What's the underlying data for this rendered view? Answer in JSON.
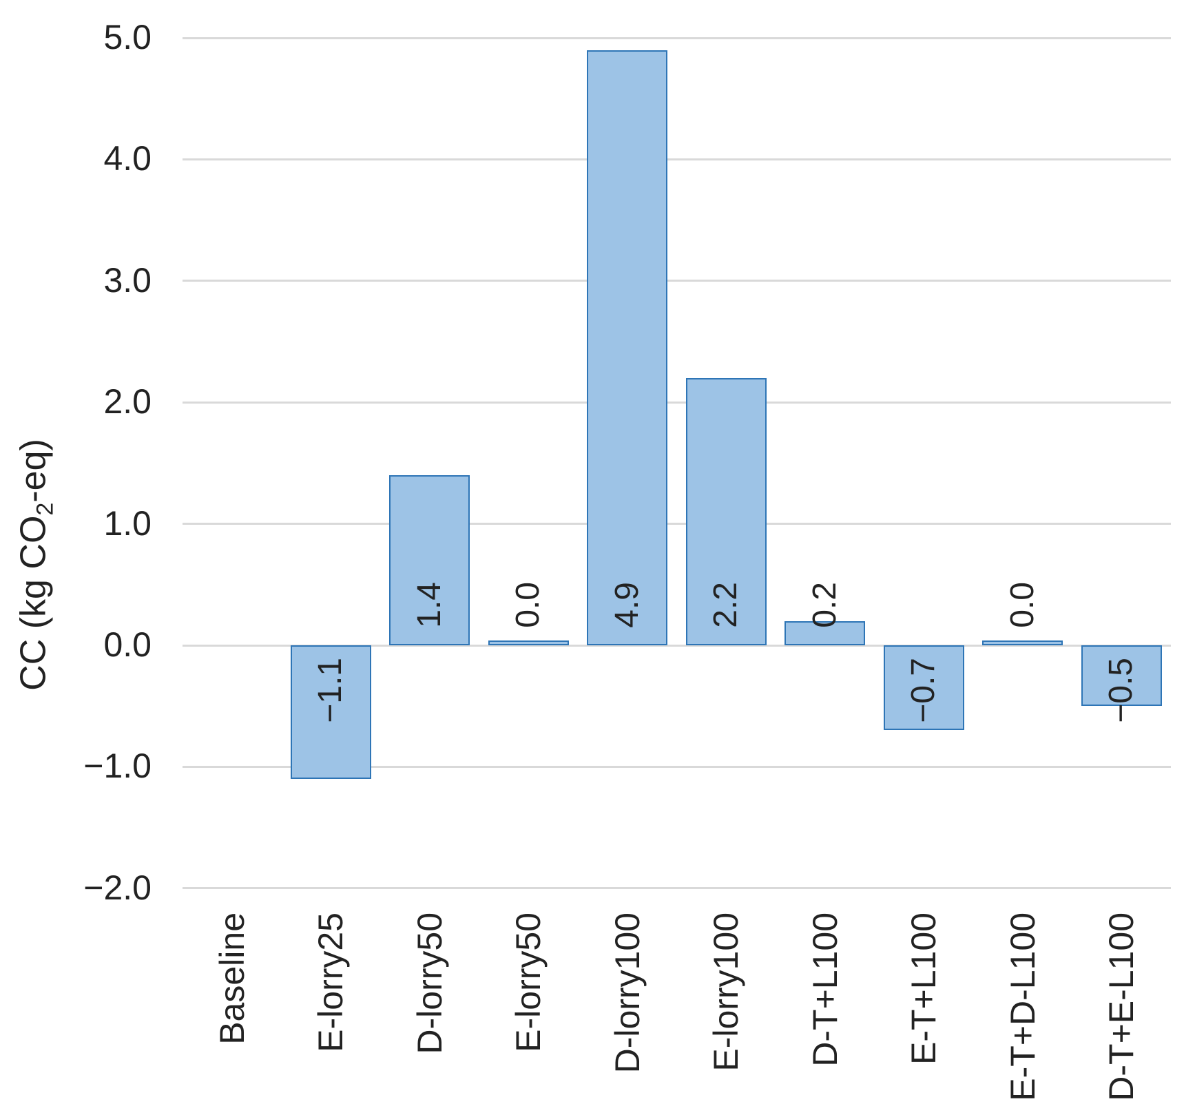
{
  "chart_data": {
    "type": "bar",
    "title": "",
    "categories": [
      "Baseline",
      "E-lorry25",
      "D-lorry50",
      "E-lorry50",
      "D-lorry100",
      "E-lorry100",
      "D-T+L100",
      "E-T+L100",
      "E-T+D-L100",
      "D-T+E-L100"
    ],
    "values": [
      0.0,
      -1.1,
      1.4,
      0.0,
      4.9,
      2.2,
      0.2,
      -0.7,
      0.0,
      -0.5
    ],
    "data_labels": [
      "",
      "−1.1",
      "1.4",
      "0.0",
      "4.9",
      "2.2",
      "0.2",
      "−0.7",
      "0.0",
      "−0.5"
    ],
    "bar_shown": [
      false,
      true,
      true,
      true,
      true,
      true,
      true,
      true,
      true,
      true
    ],
    "xlabel": "",
    "ylabel": "CC (kg CO₂-eq)",
    "ylabel_parts": {
      "prefix": "CC (kg CO",
      "sub": "2",
      "suffix": "-eq)"
    },
    "ylim": [
      -2.0,
      5.0
    ],
    "ytick_values": [
      5.0,
      4.0,
      3.0,
      2.0,
      1.0,
      0.0,
      -1.0,
      -2.0
    ],
    "ytick_labels": [
      "5.0",
      "4.0",
      "3.0",
      "2.0",
      "1.0",
      "0.0",
      "−1.0",
      "−2.0"
    ],
    "grid": true,
    "legend": false,
    "bar_label_rotation_deg": 90,
    "x_label_rotation_deg": 90
  },
  "colors": {
    "bar_fill": "#9DC3E6",
    "bar_border": "#2E75B6",
    "gridline": "#D9D9D9",
    "label_text": "#222222",
    "background": "#FFFFFF"
  }
}
